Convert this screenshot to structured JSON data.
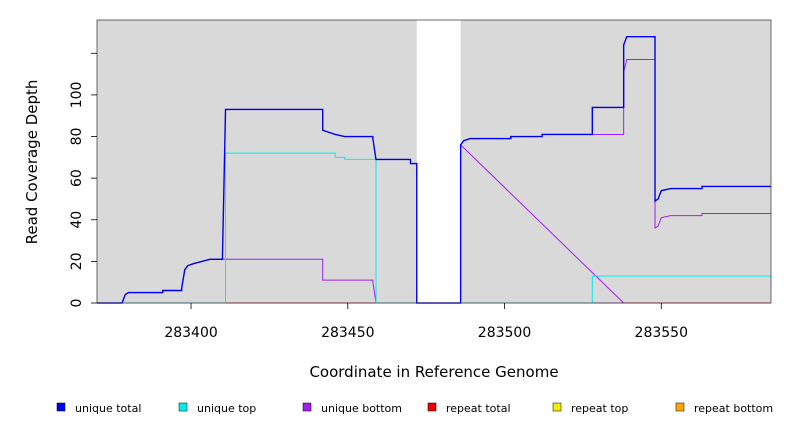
{
  "chart_data": {
    "type": "line",
    "step": true,
    "xlabel": "Coordinate in Reference Genome",
    "ylabel": "Read Coverage Depth",
    "xlim": [
      283370,
      283585
    ],
    "ylim": [
      0,
      136
    ],
    "xticks": [
      283400,
      283450,
      283500,
      283550
    ],
    "xtick_labels": [
      "283400",
      "283450",
      "283500",
      "283550"
    ],
    "yticks": [
      0,
      20,
      40,
      60,
      80,
      100,
      120
    ],
    "ytick_labels": [
      "0",
      "20",
      "40",
      "60",
      "80",
      "100",
      ""
    ],
    "background": "#d9d9d9",
    "grid": false,
    "gap": [
      283472,
      283486
    ],
    "legend_position": "bottom",
    "series": [
      {
        "name": "unique total",
        "color": "#0000ee",
        "points": [
          [
            283370,
            0
          ],
          [
            283378,
            0
          ],
          [
            283379,
            4
          ],
          [
            283380,
            5
          ],
          [
            283391,
            5
          ],
          [
            283391,
            6
          ],
          [
            283397,
            6
          ],
          [
            283397,
            7
          ],
          [
            283398,
            16
          ],
          [
            283399,
            18
          ],
          [
            283401,
            19
          ],
          [
            283406,
            21
          ],
          [
            283410,
            21
          ],
          [
            283411,
            93
          ],
          [
            283442,
            93
          ],
          [
            283442,
            83
          ],
          [
            283446,
            81
          ],
          [
            283449,
            80
          ],
          [
            283458,
            80
          ],
          [
            283458,
            79
          ],
          [
            283459,
            69
          ],
          [
            283470,
            69
          ],
          [
            283470,
            67
          ],
          [
            283472,
            67
          ],
          [
            283472,
            0
          ],
          [
            283486,
            0
          ],
          [
            283486,
            76
          ],
          [
            283487,
            78
          ],
          [
            283489,
            79
          ],
          [
            283502,
            79
          ],
          [
            283502,
            80
          ],
          [
            283512,
            80
          ],
          [
            283512,
            81
          ],
          [
            283528,
            81
          ],
          [
            283528,
            94
          ],
          [
            283538,
            94
          ],
          [
            283538,
            124
          ],
          [
            283539,
            128
          ],
          [
            283548,
            128
          ],
          [
            283548,
            49
          ],
          [
            283549,
            50
          ],
          [
            283550,
            54
          ],
          [
            283553,
            55
          ],
          [
            283563,
            55
          ],
          [
            283563,
            56
          ],
          [
            283585,
            56
          ]
        ]
      },
      {
        "name": "unique top",
        "color": "#00eeee",
        "points": [
          [
            283370,
            0
          ],
          [
            283411,
            0
          ],
          [
            283411,
            72
          ],
          [
            283440,
            72
          ],
          [
            283446,
            72
          ],
          [
            283446,
            70
          ],
          [
            283449,
            70
          ],
          [
            283449,
            69
          ],
          [
            283459,
            69
          ],
          [
            283459,
            0
          ],
          [
            283472,
            0
          ],
          [
            283486,
            0
          ],
          [
            283528,
            0
          ],
          [
            283528,
            13
          ],
          [
            283585,
            13
          ]
        ]
      },
      {
        "name": "unique bottom",
        "color": "#a020f0",
        "points": [
          [
            283370,
            0
          ],
          [
            283378,
            0
          ],
          [
            283379,
            4
          ],
          [
            283380,
            5
          ],
          [
            283391,
            5
          ],
          [
            283391,
            6
          ],
          [
            283397,
            6
          ],
          [
            283397,
            7
          ],
          [
            283398,
            16
          ],
          [
            283399,
            18
          ],
          [
            283401,
            19
          ],
          [
            283406,
            21
          ],
          [
            283442,
            21
          ],
          [
            283442,
            11
          ],
          [
            283458,
            11
          ],
          [
            283458,
            10
          ],
          [
            283459,
            0
          ],
          [
            283472,
            0
          ],
          [
            283486,
            0
          ],
          [
            283538,
            0
          ],
          [
            283538,
            0
          ],
          [
            283486,
            76
          ],
          [
            283487,
            78
          ],
          [
            283489,
            79
          ],
          [
            283502,
            79
          ],
          [
            283502,
            80
          ],
          [
            283512,
            80
          ],
          [
            283512,
            81
          ],
          [
            283538,
            81
          ],
          [
            283538,
            111
          ],
          [
            283539,
            117
          ],
          [
            283548,
            117
          ],
          [
            283548,
            36
          ],
          [
            283549,
            37
          ],
          [
            283550,
            41
          ],
          [
            283553,
            42
          ],
          [
            283563,
            42
          ],
          [
            283563,
            43
          ],
          [
            283585,
            43
          ]
        ]
      },
      {
        "name": "repeat total",
        "color": "#ee0000",
        "points": [
          [
            283370,
            0
          ],
          [
            283585,
            0
          ]
        ]
      },
      {
        "name": "repeat top",
        "color": "#eeee00",
        "points": [
          [
            283370,
            0
          ],
          [
            283585,
            0
          ]
        ]
      },
      {
        "name": "repeat bottom",
        "color": "#ffa500",
        "points": [
          [
            283370,
            0
          ],
          [
            283585,
            0
          ]
        ]
      }
    ]
  }
}
